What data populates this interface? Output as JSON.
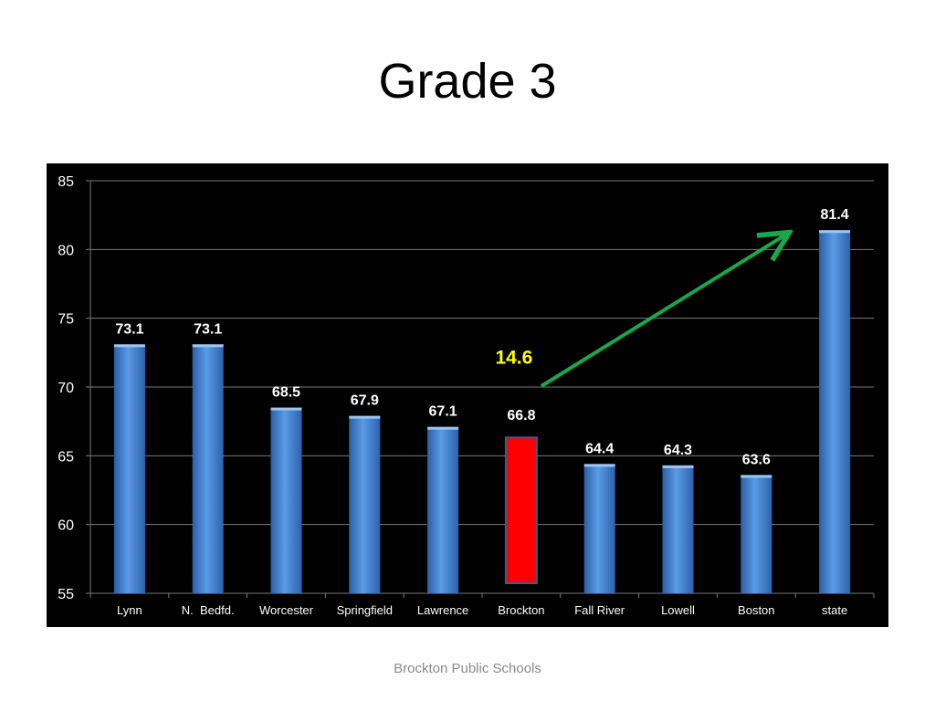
{
  "slide": {
    "title": "Grade 3",
    "footer": "Brockton Public Schools"
  },
  "colors": {
    "bar": "#3f7fd0",
    "bar_highlight": "#ff0000",
    "arrow": "#16a84a",
    "callout": "#ffff00",
    "grid": "#7a7a7a",
    "label": "#ffffff"
  },
  "chart_data": {
    "type": "bar",
    "title": "",
    "xlabel": "",
    "ylabel": "",
    "ylim": [
      55,
      85
    ],
    "yticks": [
      55,
      60,
      65,
      70,
      75,
      80,
      85
    ],
    "grid": true,
    "categories": [
      "Lynn",
      "N.  Bedfd.",
      "Worcester",
      "Springfield",
      "Lawrence",
      "Brockton",
      "Fall River",
      "Lowell",
      "Boston",
      "state"
    ],
    "values": [
      73.1,
      73.1,
      68.5,
      67.9,
      67.1,
      66.8,
      64.4,
      64.3,
      63.6,
      81.4
    ],
    "highlight": "Brockton",
    "annotation": {
      "text": "14.6",
      "from": "Brockton",
      "to": "state",
      "arrow": true
    }
  }
}
